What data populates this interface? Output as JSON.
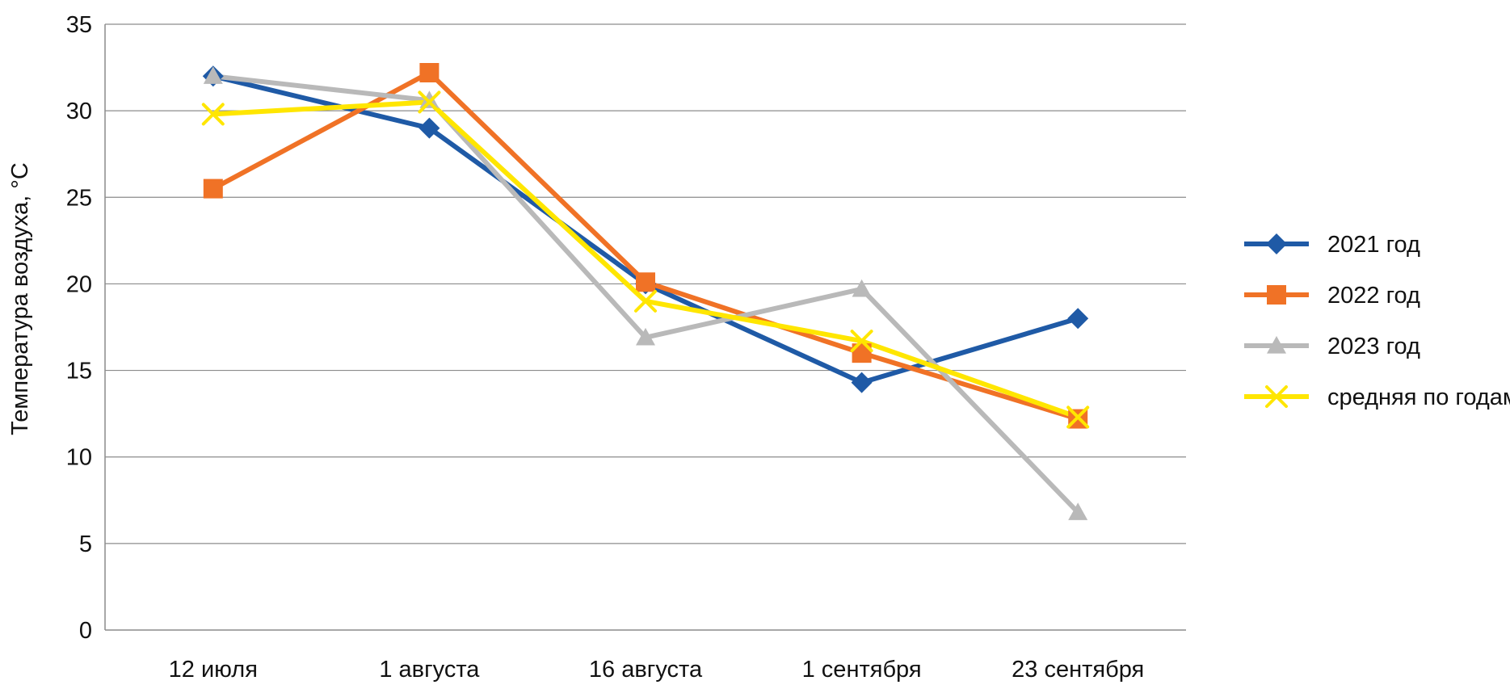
{
  "chart_data": {
    "type": "line",
    "title": "",
    "xlabel": "",
    "ylabel": "Температура воздуха, °C",
    "categories": [
      "12 июля",
      "1 августа",
      "16 августа",
      "1 сентября",
      "23 сентября"
    ],
    "ylim": [
      0,
      35
    ],
    "yticks": [
      0,
      5,
      10,
      15,
      20,
      25,
      30,
      35
    ],
    "grid": "horizontal",
    "legend_position": "right",
    "series": [
      {
        "name": "2021 год",
        "values": [
          32.0,
          29.0,
          20.0,
          14.3,
          18.0
        ],
        "color": "#1f5aa6",
        "marker": "diamond"
      },
      {
        "name": "2022 год",
        "values": [
          25.5,
          32.2,
          20.1,
          16.0,
          12.2
        ],
        "color": "#f07226",
        "marker": "square"
      },
      {
        "name": "2023 год",
        "values": [
          32.0,
          30.6,
          16.9,
          19.7,
          6.8
        ],
        "color": "#b9b9b9",
        "marker": "triangle"
      },
      {
        "name": "средняя по годам",
        "values": [
          29.8,
          30.5,
          19.0,
          16.7,
          12.3
        ],
        "color": "#ffe600",
        "marker": "x"
      }
    ]
  }
}
